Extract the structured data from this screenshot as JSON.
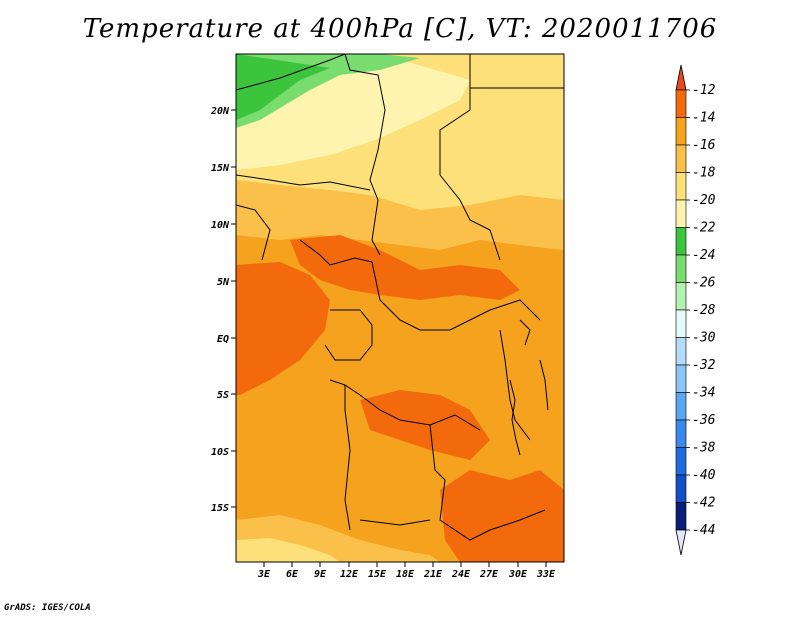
{
  "title": "Temperature at 400hPa [C], VT: 2020011706",
  "credit": "GrADS: IGES/COLA",
  "lat_ticks": [
    "20N",
    "15N",
    "10N",
    "5N",
    "EQ",
    "5S",
    "10S",
    "15S"
  ],
  "lon_ticks": [
    "3E",
    "6E",
    "9E",
    "12E",
    "15E",
    "18E",
    "21E",
    "24E",
    "27E",
    "30E",
    "33E"
  ],
  "colorbar": {
    "labels": [
      "-12",
      "-14",
      "-16",
      "-18",
      "-20",
      "-22",
      "-24",
      "-26",
      "-28",
      "-30",
      "-32",
      "-34",
      "-36",
      "-38",
      "-40",
      "-42",
      "-44"
    ],
    "colors": [
      "#e8481a",
      "#f26a0c",
      "#f5a21f",
      "#fbc04a",
      "#fde07a",
      "#fef4b0",
      "#3cc43c",
      "#78dc6e",
      "#b4f0b0",
      "#e4faf8",
      "#b4dcfa",
      "#8cc4f6",
      "#5aa6f2",
      "#3a88ea",
      "#206ae0",
      "#124fc8",
      "#0a1e78"
    ],
    "top_arrow_color": "#e8481a",
    "bottom_arrow_color": "#e6e6fa"
  },
  "map": {
    "colors": {
      "deep_orange": "#f26a0c",
      "orange": "#f5a21f",
      "light_orange": "#fbc04a",
      "yellow": "#fde07a",
      "pale_yellow": "#fef4b0",
      "green": "#3cc43c",
      "light_green": "#78dc6e",
      "red_orange": "#e8481a"
    }
  }
}
